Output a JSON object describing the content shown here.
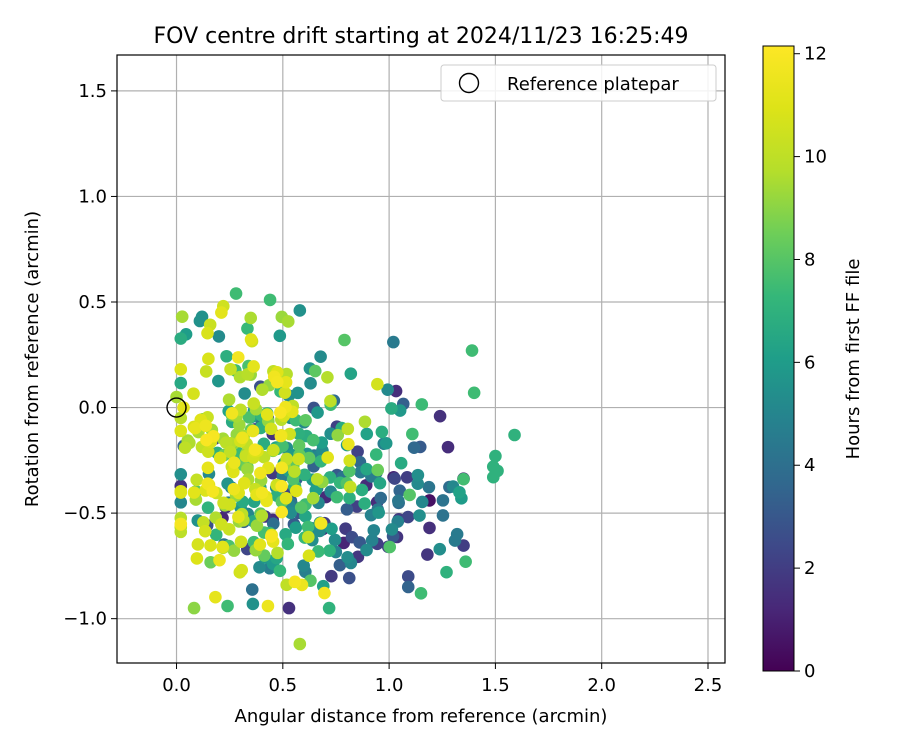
{
  "chart_data": {
    "type": "scatter",
    "title": "FOV centre drift starting at 2024/11/23 16:25:49",
    "xlabel": "Angular distance from reference (arcmin)",
    "ylabel": "Rotation from reference (arcmin)",
    "xlim": [
      -0.28,
      2.58
    ],
    "ylim": [
      -1.21,
      1.67
    ],
    "xticks": [
      0.0,
      0.5,
      1.0,
      1.5,
      2.0,
      2.5
    ],
    "xtick_labels": [
      "0.0",
      "0.5",
      "1.0",
      "1.5",
      "2.0",
      "2.5"
    ],
    "yticks": [
      -1.0,
      -0.5,
      0.0,
      0.5,
      1.0,
      1.5
    ],
    "ytick_labels": [
      "−1.0",
      "−0.5",
      "0.0",
      "0.5",
      "1.0",
      "1.5"
    ],
    "grid": true,
    "legend": {
      "placement": "top-right",
      "entries": [
        "Reference platepar"
      ]
    },
    "reference_point": {
      "x": 0.0,
      "y": 0.0
    },
    "colorbar": {
      "label": "Hours from first FF file",
      "range": [
        0,
        12.15
      ],
      "ticks": [
        0,
        2,
        4,
        6,
        8,
        10,
        12
      ],
      "tick_labels": [
        "0",
        "2",
        "4",
        "6",
        "8",
        "10",
        "12"
      ],
      "colormap": "viridis"
    },
    "point_clusters": [
      {
        "cx": 0.78,
        "cy": -0.42,
        "sx": 0.3,
        "sy": 0.22,
        "h_min": 1.0,
        "h_max": 5.5,
        "n": 110
      },
      {
        "cx": 0.55,
        "cy": -0.28,
        "sx": 0.28,
        "sy": 0.28,
        "h_min": 5.0,
        "h_max": 8.5,
        "n": 150
      },
      {
        "cx": 0.35,
        "cy": -0.25,
        "sx": 0.18,
        "sy": 0.3,
        "h_min": 9.0,
        "h_max": 12.0,
        "n": 180
      }
    ],
    "series": [
      {
        "values": [
          {
            "x": 0.28,
            "y": 0.54,
            "h": 7.5
          },
          {
            "x": 0.44,
            "y": 0.51,
            "h": 7.5
          },
          {
            "x": 0.58,
            "y": 0.46,
            "h": 5.5
          },
          {
            "x": 0.22,
            "y": 0.48,
            "h": 10.5
          },
          {
            "x": 0.12,
            "y": 0.43,
            "h": 5.5
          },
          {
            "x": 0.11,
            "y": 0.41,
            "h": 5.5
          },
          {
            "x": 1.02,
            "y": 0.31,
            "h": 4.5
          },
          {
            "x": 0.79,
            "y": 0.32,
            "h": 8.0
          },
          {
            "x": 1.39,
            "y": 0.27,
            "h": 7.5
          },
          {
            "x": 1.4,
            "y": 0.07,
            "h": 7.5
          },
          {
            "x": 1.59,
            "y": -0.13,
            "h": 7.0
          },
          {
            "x": 1.49,
            "y": -0.28,
            "h": 7.0
          },
          {
            "x": 1.51,
            "y": -0.3,
            "h": 7.0
          },
          {
            "x": 1.5,
            "y": -0.23,
            "h": 7.0
          },
          {
            "x": 1.49,
            "y": -0.33,
            "h": 7.0
          },
          {
            "x": 1.36,
            "y": -0.73,
            "h": 7.5
          },
          {
            "x": 1.27,
            "y": -0.78,
            "h": 7.0
          },
          {
            "x": 1.15,
            "y": -0.88,
            "h": 7.5
          },
          {
            "x": 1.32,
            "y": -0.6,
            "h": 4.5
          },
          {
            "x": 1.31,
            "y": -0.63,
            "h": 4.5
          },
          {
            "x": 1.09,
            "y": -0.8,
            "h": 2.5
          },
          {
            "x": 1.09,
            "y": -0.85,
            "h": 3.5
          },
          {
            "x": 1.19,
            "y": -0.44,
            "h": 0.5
          },
          {
            "x": 1.19,
            "y": -0.57,
            "h": 1.5
          },
          {
            "x": 1.34,
            "y": -0.43,
            "h": 6.0
          },
          {
            "x": 0.24,
            "y": -0.94,
            "h": 7.5
          },
          {
            "x": 0.58,
            "y": -1.12,
            "h": 9.5
          },
          {
            "x": 0.43,
            "y": -0.94,
            "h": 11.5
          },
          {
            "x": 0.59,
            "y": -0.84,
            "h": 11.5
          },
          {
            "x": 0.63,
            "y": -0.82,
            "h": 8.0
          },
          {
            "x": 0.0,
            "y": 0.05,
            "h": 9.5
          },
          {
            "x": 0.04,
            "y": -0.19,
            "h": 10.0
          }
        ]
      }
    ]
  }
}
